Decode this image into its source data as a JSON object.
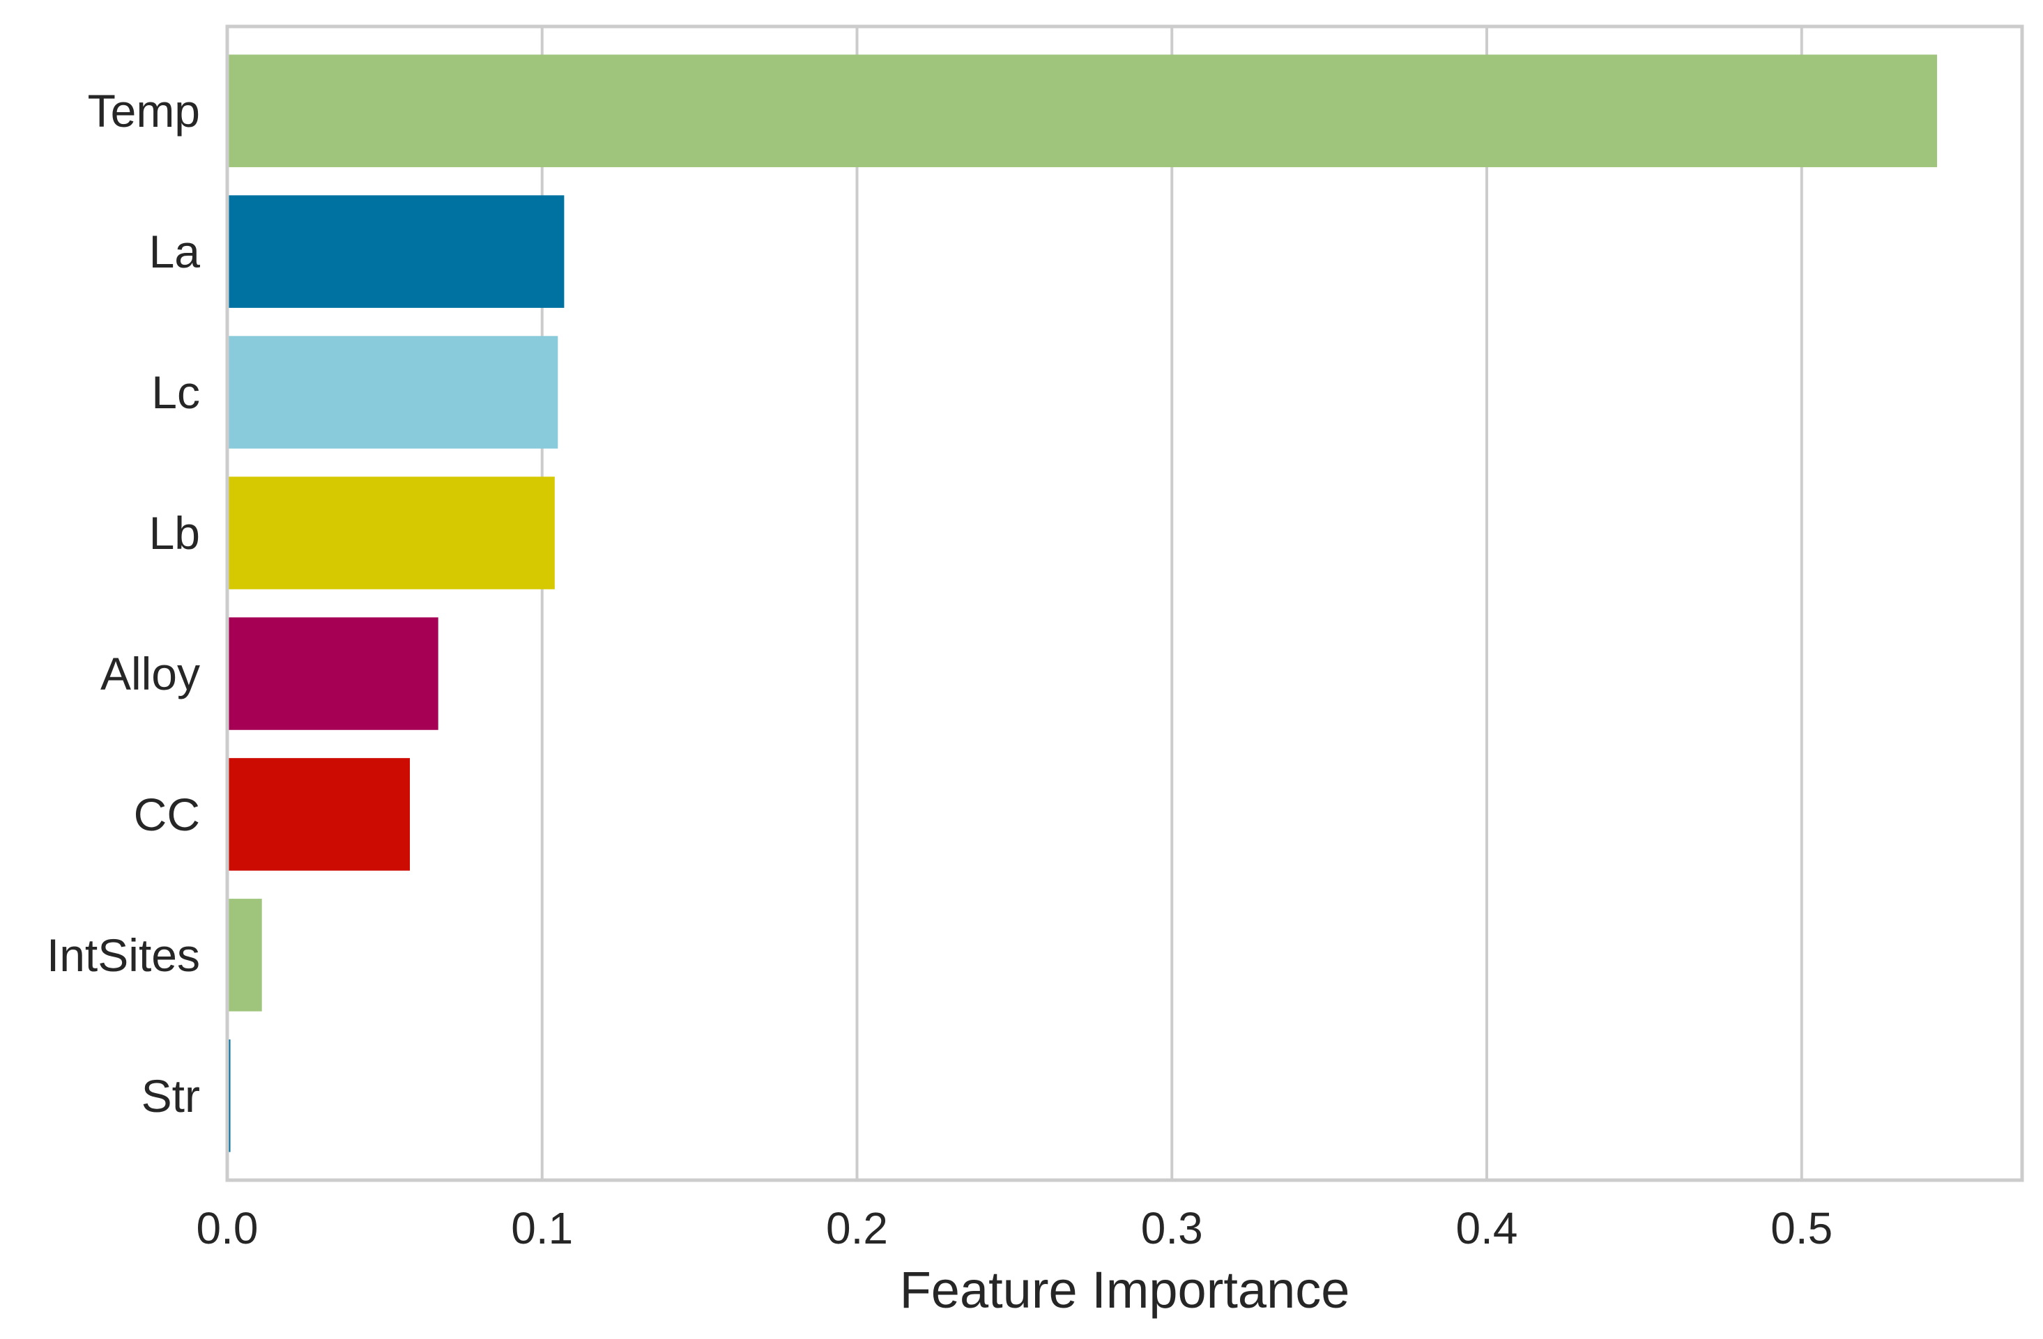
{
  "chart_data": {
    "type": "bar",
    "orientation": "horizontal",
    "title": "",
    "xlabel": "Feature Importance",
    "ylabel": "",
    "xlim": [
      0,
      0.57
    ],
    "xticks": [
      0.0,
      0.1,
      0.2,
      0.3,
      0.4,
      0.5
    ],
    "xtick_labels": [
      "0.0",
      "0.1",
      "0.2",
      "0.3",
      "0.4",
      "0.5"
    ],
    "grid": true,
    "legend": "none",
    "categories": [
      "Temp",
      "La",
      "Lc",
      "Lb",
      "Alloy",
      "CC",
      "IntSites",
      "Str"
    ],
    "values": [
      0.543,
      0.107,
      0.105,
      0.104,
      0.067,
      0.058,
      0.011,
      0.001
    ],
    "colors": [
      "#9fc47b",
      "#0072a2",
      "#89cbda",
      "#d6c902",
      "#a60055",
      "#cc0b02",
      "#9fc47b",
      "#0072a2"
    ]
  }
}
